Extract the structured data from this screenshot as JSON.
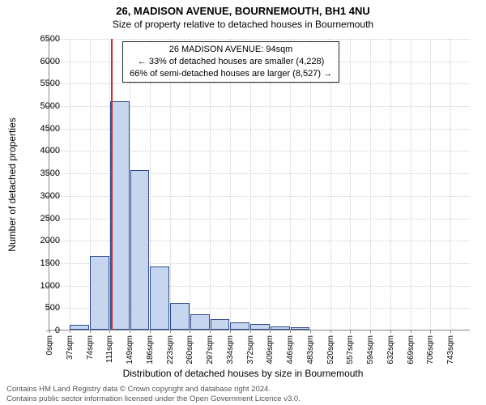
{
  "title": "26, MADISON AVENUE, BOURNEMOUTH, BH1 4NU",
  "subtitle": "Size of property relative to detached houses in Bournemouth",
  "ylabel": "Number of detached properties",
  "xlabel": "Distribution of detached houses by size in Bournemouth",
  "chart": {
    "type": "bar",
    "ymax": 6500,
    "ytick_step": 500,
    "yticks": [
      0,
      500,
      1000,
      1500,
      2000,
      2500,
      3000,
      3500,
      4000,
      4500,
      5000,
      5500,
      6000,
      6500
    ],
    "xticks": [
      "0sqm",
      "37sqm",
      "74sqm",
      "111sqm",
      "149sqm",
      "186sqm",
      "223sqm",
      "260sqm",
      "297sqm",
      "334sqm",
      "372sqm",
      "409sqm",
      "446sqm",
      "483sqm",
      "520sqm",
      "557sqm",
      "594sqm",
      "632sqm",
      "669sqm",
      "706sqm",
      "743sqm"
    ],
    "bars": [
      0,
      100,
      1650,
      5100,
      3550,
      1400,
      600,
      350,
      230,
      160,
      120,
      70,
      50,
      0,
      0,
      0,
      0,
      0,
      0,
      0,
      0
    ],
    "bar_fill": "#c7d6ef",
    "bar_stroke": "#2d4b8e",
    "grid_color": "#cccccc",
    "axis_color": "#888888",
    "background": "#ffffff",
    "marker": {
      "bin_index": 3,
      "frac_in_bin": 0.05,
      "color": "#d62728"
    }
  },
  "annotation": {
    "line1": "26 MADISON AVENUE: 94sqm",
    "line2": "← 33% of detached houses are smaller (4,228)",
    "line3": "66% of semi-detached houses are larger (8,527) →"
  },
  "footer": {
    "line1": "Contains HM Land Registry data © Crown copyright and database right 2024.",
    "line2": "Contains public sector information licensed under the Open Government Licence v3.0."
  }
}
